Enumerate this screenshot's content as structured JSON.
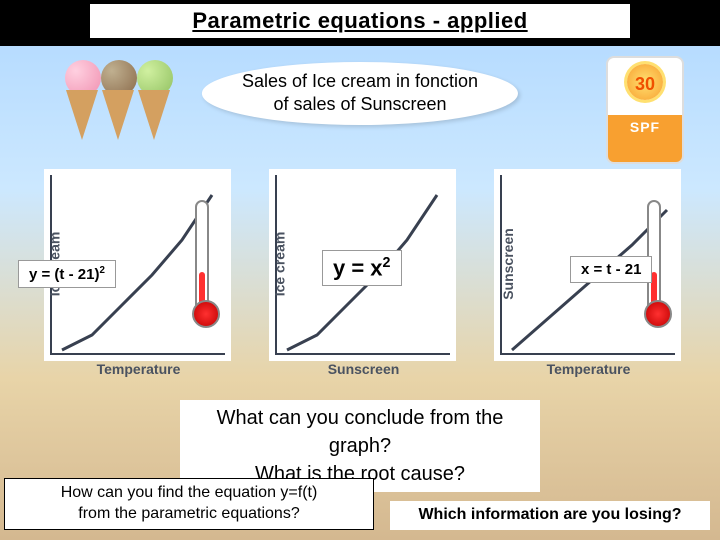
{
  "title": "Parametric equations - applied",
  "subtitle_line1": "Sales of Ice cream in fonction",
  "subtitle_line2": "of sales of Sunscreen",
  "sunscreen": {
    "number": "30",
    "label": "SPF"
  },
  "charts": {
    "left": {
      "ylabel": "Ice cream",
      "xlabel": "Temperature",
      "curve_color": "#384050",
      "curve_width": 3,
      "points": [
        [
          10,
          175
        ],
        [
          40,
          160
        ],
        [
          70,
          130
        ],
        [
          100,
          100
        ],
        [
          130,
          65
        ],
        [
          160,
          20
        ]
      ]
    },
    "mid": {
      "ylabel": "Ice cream",
      "xlabel": "Sunscreen",
      "curve_color": "#384050",
      "curve_width": 3,
      "points": [
        [
          10,
          175
        ],
        [
          40,
          160
        ],
        [
          70,
          130
        ],
        [
          100,
          100
        ],
        [
          130,
          65
        ],
        [
          160,
          20
        ]
      ]
    },
    "right": {
      "ylabel": "Sunscreen",
      "xlabel": "Temperature",
      "curve_color": "#384050",
      "curve_width": 3,
      "points": [
        [
          10,
          175
        ],
        [
          50,
          140
        ],
        [
          90,
          105
        ],
        [
          130,
          70
        ],
        [
          165,
          35
        ]
      ]
    }
  },
  "equations": {
    "left_pre": "y = (t - 21)",
    "left_sup": "2",
    "mid_pre": "y = x",
    "mid_sup": "2",
    "right": "x = t - 21"
  },
  "questions": {
    "q1a": "What can you conclude from the graph?",
    "q1b": "What is the root cause?",
    "q2a": "How can you find the equation y=f(t)",
    "q2b": "from the parametric equations?",
    "q3": "Which information are you losing?"
  },
  "colors": {
    "axis": "#384050",
    "title_underline": "#000000",
    "sunscreen_orange": "#f8a030",
    "thermo_red": "#ff3030"
  }
}
